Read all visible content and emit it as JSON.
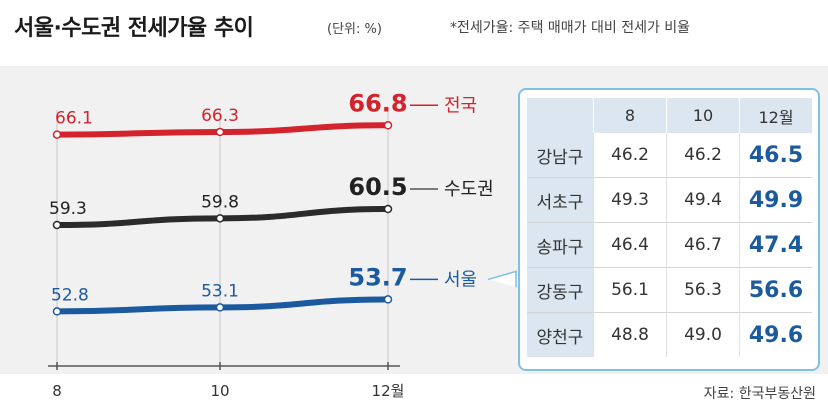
{
  "title": "서울·수도권 전세가율 추이",
  "unit_label": "(단위: %)",
  "note": "*전세가율: 주택 매매가 대비 전세가 비율",
  "source": "자료: 한국부동산원",
  "colors": {
    "national": "#d3232d",
    "capital": "#2b2b2b",
    "seoul": "#1b5a9e",
    "band": "#f1f1f1",
    "table_header": "#dbe6f1",
    "table_border": "#7ec1e6"
  },
  "chart_data": {
    "type": "line",
    "x": [
      "8",
      "10",
      "12월"
    ],
    "series": [
      {
        "name": "전국",
        "values": [
          66.1,
          66.3,
          66.8
        ]
      },
      {
        "name": "수도권",
        "values": [
          59.3,
          59.8,
          60.5
        ]
      },
      {
        "name": "서울",
        "values": [
          52.8,
          53.1,
          53.7
        ]
      }
    ],
    "grid": false,
    "title": "서울·수도권 전세가율 추이"
  },
  "table": {
    "columns": [
      "",
      "8",
      "10",
      "12월"
    ],
    "rows": [
      {
        "name": "강남구",
        "values": [
          "46.2",
          "46.2",
          "46.5"
        ]
      },
      {
        "name": "서초구",
        "values": [
          "49.3",
          "49.4",
          "49.9"
        ]
      },
      {
        "name": "송파구",
        "values": [
          "46.4",
          "46.7",
          "47.4"
        ]
      },
      {
        "name": "강동구",
        "values": [
          "56.1",
          "56.3",
          "56.6"
        ]
      },
      {
        "name": "양천구",
        "values": [
          "48.8",
          "49.0",
          "49.6"
        ]
      }
    ]
  }
}
